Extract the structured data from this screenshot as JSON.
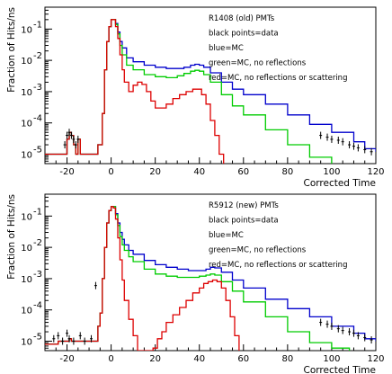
{
  "chart_data": [
    {
      "type": "line",
      "title": "",
      "xlabel": "Corrected Time",
      "ylabel": "Fraction of Hits/ns",
      "xlim": [
        -30,
        120
      ],
      "ylim": [
        5e-06,
        0.5
      ],
      "yscale": "log",
      "x_ticks": [
        -20,
        0,
        20,
        40,
        60,
        80,
        100,
        120
      ],
      "y_ticks": [
        {
          "value": 1e-05,
          "base": "10",
          "exp": "-5"
        },
        {
          "value": 0.0001,
          "base": "10",
          "exp": "-4"
        },
        {
          "value": 0.001,
          "base": "10",
          "exp": "-3"
        },
        {
          "value": 0.01,
          "base": "10",
          "exp": "-2"
        },
        {
          "value": 0.1,
          "base": "10",
          "exp": "-1"
        }
      ],
      "legend_lines": [
        "R1408 (old) PMTs",
        "black points=data",
        "blue=MC",
        "green=MC, no reflections",
        "red=MC, no reflections or scattering"
      ],
      "grid": false,
      "series": [
        {
          "color": "#0000cc",
          "style": "step",
          "x": [
            -30,
            -22,
            -20,
            -19,
            -18,
            -17,
            -16,
            -15,
            -14,
            -10,
            -6,
            -4,
            -3,
            -2,
            -1,
            0,
            1,
            2,
            3,
            4,
            5,
            7,
            10,
            15,
            20,
            25,
            30,
            33,
            36,
            38,
            40,
            42,
            45,
            50,
            55,
            60,
            70,
            80,
            90,
            100,
            110,
            115,
            120
          ],
          "y": [
            1e-05,
            1e-05,
            3e-05,
            5e-05,
            4e-05,
            2e-05,
            1e-05,
            3e-05,
            1e-05,
            1e-05,
            2e-05,
            0.0002,
            0.005,
            0.04,
            0.12,
            0.2,
            0.2,
            0.15,
            0.08,
            0.04,
            0.025,
            0.012,
            0.009,
            0.007,
            0.006,
            0.0055,
            0.0055,
            0.006,
            0.007,
            0.0075,
            0.007,
            0.006,
            0.004,
            0.002,
            0.0012,
            0.0008,
            0.0004,
            0.00018,
            9e-05,
            5e-05,
            2.5e-05,
            1.5e-05,
            1.2e-05
          ]
        },
        {
          "color": "#00cc00",
          "style": "step",
          "x": [
            -30,
            -22,
            -20,
            -19,
            -18,
            -17,
            -16,
            -15,
            -14,
            -10,
            -6,
            -4,
            -3,
            -2,
            -1,
            0,
            1,
            2,
            3,
            4,
            5,
            7,
            10,
            15,
            20,
            25,
            30,
            33,
            36,
            38,
            40,
            42,
            45,
            50,
            55,
            60,
            70,
            80,
            90,
            100
          ],
          "y": [
            1e-05,
            1e-05,
            3e-05,
            5e-05,
            4e-05,
            2e-05,
            1e-05,
            3e-05,
            1e-05,
            1e-05,
            2e-05,
            0.0002,
            0.005,
            0.04,
            0.12,
            0.2,
            0.2,
            0.14,
            0.07,
            0.03,
            0.015,
            0.007,
            0.005,
            0.0035,
            0.003,
            0.0028,
            0.0032,
            0.0038,
            0.0045,
            0.0048,
            0.0045,
            0.0035,
            0.002,
            0.0008,
            0.00035,
            0.00018,
            6e-05,
            2e-05,
            8e-06,
            4e-06
          ]
        },
        {
          "color": "#dd0000",
          "style": "step",
          "x": [
            -30,
            -22,
            -20,
            -19,
            -18,
            -17,
            -16,
            -15,
            -14,
            -10,
            -6,
            -4,
            -3,
            -2,
            -1,
            0,
            1,
            2,
            3,
            4,
            5,
            6,
            8,
            10,
            12,
            14,
            16,
            18,
            20,
            22,
            25,
            28,
            31,
            34,
            37,
            39,
            41,
            43,
            45,
            47,
            49,
            51
          ],
          "y": [
            1e-05,
            1e-05,
            3e-05,
            5e-05,
            4e-05,
            2e-05,
            1e-05,
            3e-05,
            1e-05,
            1e-05,
            2e-05,
            0.0002,
            0.005,
            0.04,
            0.12,
            0.2,
            0.2,
            0.12,
            0.05,
            0.015,
            0.005,
            0.002,
            0.001,
            0.0016,
            0.002,
            0.0017,
            0.001,
            0.0005,
            0.0003,
            0.0003,
            0.0004,
            0.0006,
            0.0008,
            0.001,
            0.0012,
            0.0012,
            0.0008,
            0.0004,
            0.00012,
            4e-05,
            1e-05,
            3e-06
          ]
        },
        {
          "color": "#000000",
          "style": "points",
          "x": [
            -21,
            -20,
            -19,
            -18,
            -17,
            -16,
            -15,
            95,
            98,
            100,
            103,
            105,
            108,
            110,
            112,
            115,
            118
          ],
          "y": [
            2e-05,
            4e-05,
            5e-05,
            4e-05,
            3e-05,
            2e-05,
            3e-05,
            4e-05,
            3.5e-05,
            3e-05,
            2.8e-05,
            2.5e-05,
            2e-05,
            1.8e-05,
            1.6e-05,
            1.4e-05,
            1.2e-05
          ]
        }
      ]
    },
    {
      "type": "line",
      "title": "",
      "xlabel": "Corrected Time",
      "ylabel": "Fraction of Hits/ns",
      "xlim": [
        -30,
        120
      ],
      "ylim": [
        5e-06,
        0.5
      ],
      "yscale": "log",
      "x_ticks": [
        -20,
        0,
        20,
        40,
        60,
        80,
        100,
        120
      ],
      "y_ticks": [
        {
          "value": 1e-05,
          "base": "10",
          "exp": "-5"
        },
        {
          "value": 0.0001,
          "base": "10",
          "exp": "-4"
        },
        {
          "value": 0.001,
          "base": "10",
          "exp": "-3"
        },
        {
          "value": 0.01,
          "base": "10",
          "exp": "-2"
        },
        {
          "value": 0.1,
          "base": "10",
          "exp": "-1"
        }
      ],
      "legend_lines": [
        "R5912 (new) PMTs",
        "black points=data",
        "blue=MC",
        "green=MC, no reflections",
        "red=MC, no reflections or scattering"
      ],
      "grid": false,
      "series": [
        {
          "color": "#0000cc",
          "style": "step",
          "x": [
            -30,
            -24,
            -22,
            -20,
            -19,
            -18,
            -16,
            -12,
            -8,
            -6,
            -5,
            -4,
            -3,
            -2,
            -1,
            0,
            1,
            2,
            3,
            4,
            5,
            6,
            8,
            10,
            15,
            20,
            25,
            30,
            35,
            40,
            43,
            45,
            47,
            50,
            55,
            60,
            70,
            80,
            90,
            100,
            110,
            115,
            120
          ],
          "y": [
            8e-06,
            1e-05,
            1e-05,
            1e-05,
            1.2e-05,
            1e-05,
            1e-05,
            1e-05,
            1e-05,
            3e-05,
            8e-05,
            0.001,
            0.01,
            0.06,
            0.15,
            0.2,
            0.2,
            0.12,
            0.06,
            0.03,
            0.018,
            0.012,
            0.008,
            0.006,
            0.0038,
            0.0028,
            0.0023,
            0.002,
            0.0018,
            0.0018,
            0.002,
            0.0023,
            0.0022,
            0.0016,
            0.0009,
            0.0005,
            0.00022,
            0.00011,
            6e-05,
            3e-05,
            1.8e-05,
            1.2e-05,
            1e-05
          ]
        },
        {
          "color": "#00cc00",
          "style": "step",
          "x": [
            -30,
            -24,
            -22,
            -20,
            -19,
            -18,
            -16,
            -12,
            -8,
            -6,
            -5,
            -4,
            -3,
            -2,
            -1,
            0,
            1,
            2,
            3,
            4,
            5,
            6,
            8,
            10,
            15,
            20,
            25,
            30,
            35,
            40,
            43,
            45,
            47,
            50,
            55,
            60,
            70,
            80,
            90,
            100,
            108
          ],
          "y": [
            8e-06,
            1e-05,
            1e-05,
            1e-05,
            1.2e-05,
            1e-05,
            1e-05,
            1e-05,
            1e-05,
            3e-05,
            8e-05,
            0.001,
            0.01,
            0.06,
            0.15,
            0.2,
            0.2,
            0.11,
            0.05,
            0.022,
            0.012,
            0.008,
            0.005,
            0.0035,
            0.002,
            0.0014,
            0.0012,
            0.0011,
            0.0011,
            0.0012,
            0.0013,
            0.0014,
            0.0013,
            0.0008,
            0.0004,
            0.00018,
            6e-05,
            2e-05,
            9e-06,
            6e-06,
            4e-06
          ]
        },
        {
          "color": "#dd0000",
          "style": "step",
          "x": [
            -30,
            -24,
            -22,
            -20,
            -19,
            -18,
            -16,
            -12,
            -8,
            -6,
            -5,
            -4,
            -3,
            -2,
            -1,
            0,
            1,
            2,
            3,
            4,
            5,
            6,
            8,
            10,
            12,
            14,
            17,
            19,
            21,
            23,
            25,
            28,
            31,
            34,
            37,
            40,
            42,
            44,
            46,
            48,
            50,
            52,
            54,
            56,
            58
          ],
          "y": [
            8e-06,
            1e-05,
            1e-05,
            1e-05,
            1.2e-05,
            1e-05,
            1e-05,
            1e-05,
            1e-05,
            3e-05,
            8e-05,
            0.001,
            0.01,
            0.06,
            0.15,
            0.2,
            0.18,
            0.08,
            0.02,
            0.004,
            0.0009,
            0.0002,
            5e-05,
            1.5e-05,
            5e-06,
            3e-06,
            3e-06,
            6e-06,
            1.2e-05,
            2e-05,
            4e-05,
            7e-05,
            0.00012,
            0.0002,
            0.00035,
            0.0005,
            0.0007,
            0.0008,
            0.0009,
            0.0008,
            0.0005,
            0.0002,
            6e-05,
            1.5e-05,
            3e-06
          ]
        },
        {
          "color": "#000000",
          "style": "points",
          "x": [
            -26,
            -24,
            -22,
            -20,
            -19,
            -17,
            -14,
            -12,
            -9,
            -7,
            95,
            98,
            100,
            103,
            105,
            108,
            110,
            112,
            115,
            118
          ],
          "y": [
            1.2e-05,
            1.5e-05,
            1e-05,
            1.8e-05,
            1.2e-05,
            1e-05,
            1.5e-05,
            1e-05,
            1.2e-05,
            0.0006,
            4e-05,
            3.5e-05,
            3e-05,
            2.5e-05,
            2.2e-05,
            2e-05,
            1.8e-05,
            1.5e-05,
            1.3e-05,
            1.1e-05
          ]
        }
      ]
    }
  ]
}
